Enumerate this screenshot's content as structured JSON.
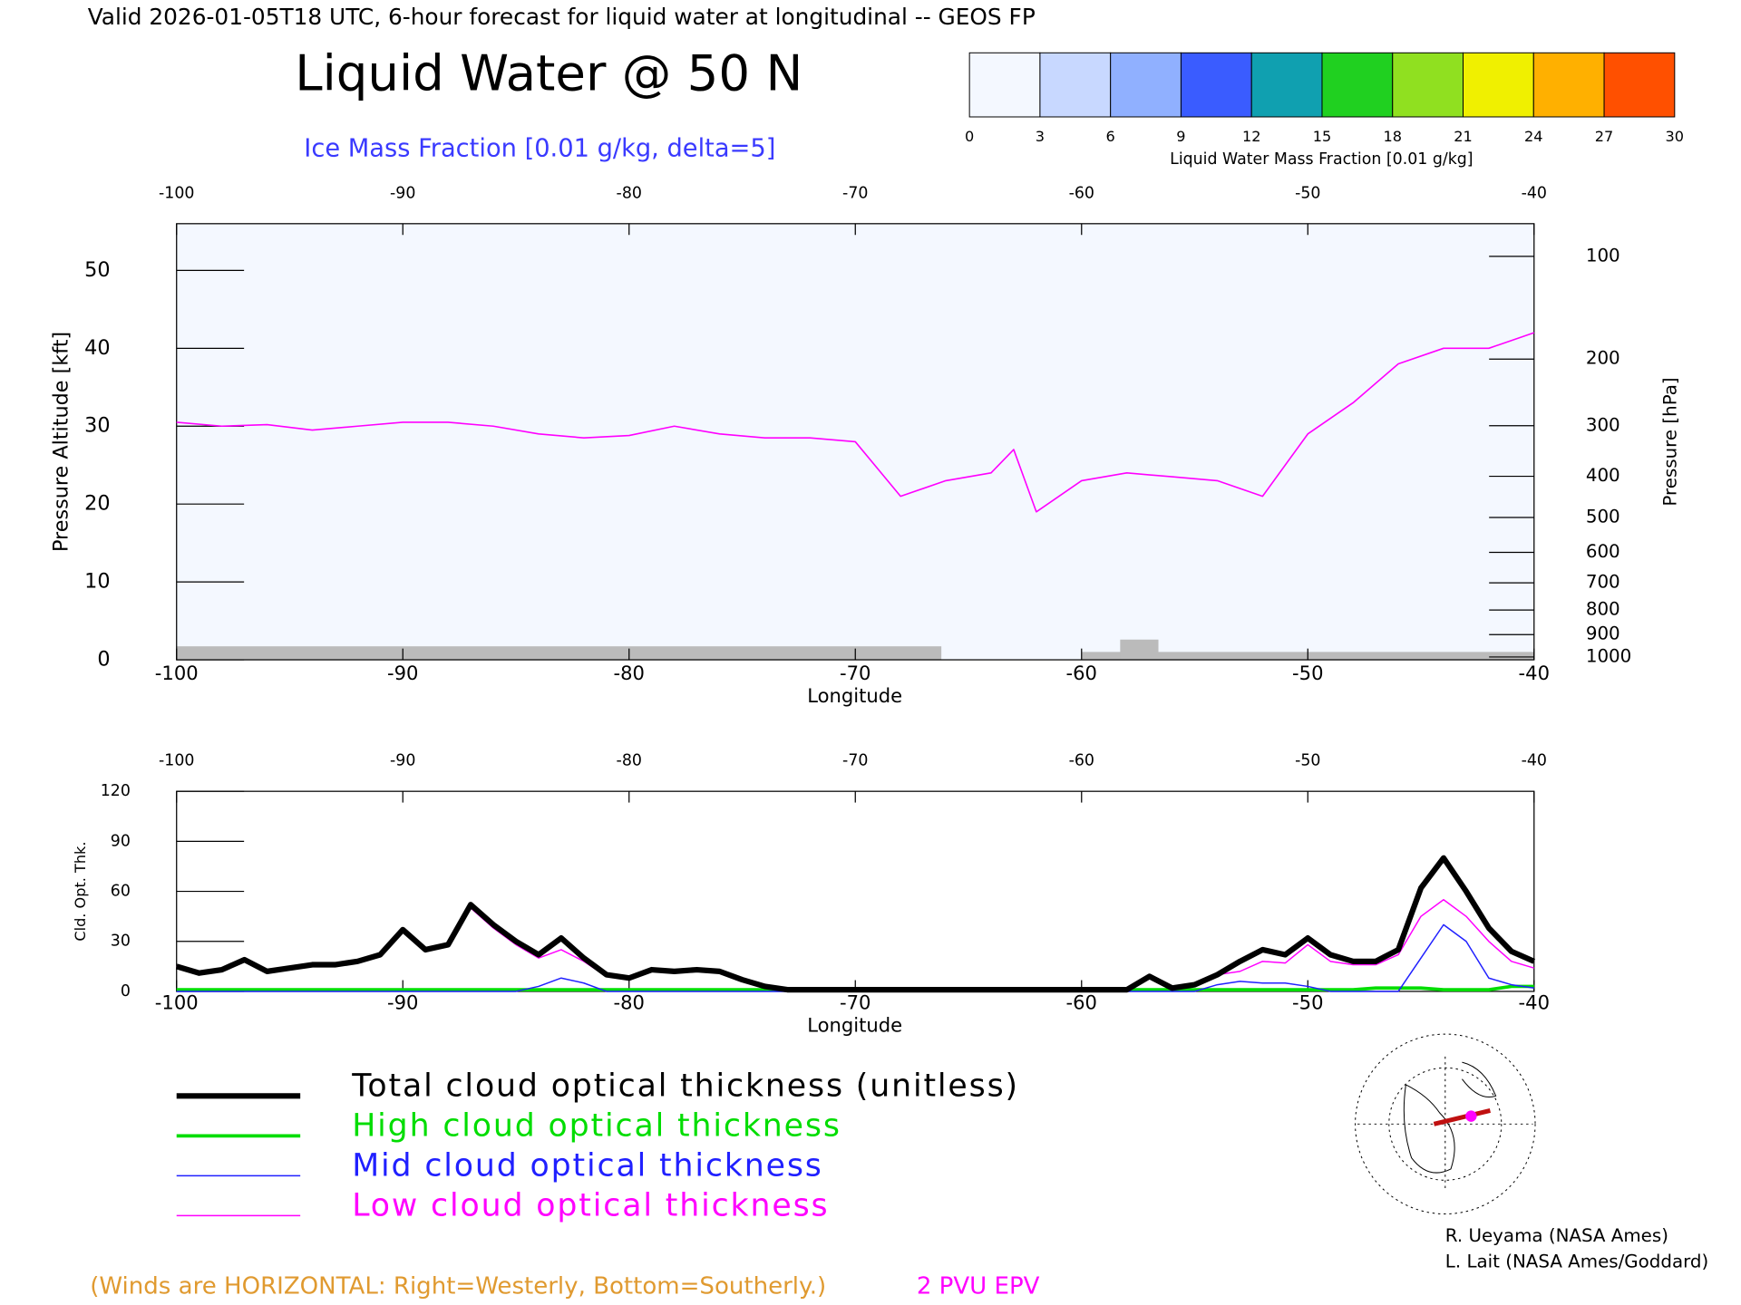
{
  "header": "Valid 2026-01-05T18 UTC, 6-hour forecast for liquid water at longitudinal -- GEOS FP",
  "colorbar": {
    "label": "Liquid Water Mass Fraction [0.01 g/kg]",
    "ticks": [
      0,
      3,
      6,
      9,
      12,
      15,
      18,
      21,
      24,
      27,
      30
    ],
    "colors": [
      "#f4f8ff",
      "#c8d8ff",
      "#90b0ff",
      "#3a5cff",
      "#10a0b0",
      "#20d020",
      "#90e020",
      "#f0f000",
      "#ffb000",
      "#ff5000"
    ]
  },
  "chart_data": [
    {
      "type": "cross-section",
      "title": "Liquid Water @ 50 N",
      "subtitle": "Ice Mass Fraction [0.01 g/kg, delta=5]",
      "xlabel": "Longitude",
      "ylabel": "Pressure Altitude [kft]",
      "y2label": "Pressure [hPa]",
      "xlim": [
        -100,
        -40
      ],
      "xticks": [
        -100,
        -90,
        -80,
        -70,
        -60,
        -50,
        -40
      ],
      "ylim": [
        0,
        56
      ],
      "yticks": [
        0,
        10,
        20,
        30,
        40,
        50
      ],
      "y2ticks": [
        100,
        200,
        300,
        400,
        500,
        600,
        700,
        800,
        900,
        1000
      ],
      "series": [
        {
          "name": "2 PVU EPV",
          "color": "#ff00ff",
          "x": [
            -100,
            -98,
            -96,
            -94,
            -92,
            -90,
            -88,
            -86,
            -84,
            -82,
            -80,
            -78,
            -76,
            -74,
            -72,
            -70,
            -68,
            -66,
            -64,
            -63,
            -62,
            -60,
            -58,
            -56,
            -54,
            -52,
            -50,
            -48,
            -46,
            -44,
            -42,
            -40
          ],
          "values": [
            30.5,
            30,
            30.2,
            29.5,
            30,
            30.5,
            30.5,
            30,
            29,
            28.5,
            28.8,
            30,
            29,
            28.5,
            28.5,
            28,
            21,
            23,
            24,
            27,
            19,
            23,
            24,
            23.5,
            23,
            21,
            29,
            33,
            38,
            40,
            40,
            42
          ]
        }
      ]
    },
    {
      "type": "line",
      "xlabel": "Longitude",
      "ylabel": "Cld. Opt. Thk.",
      "xlim": [
        -100,
        -40
      ],
      "xticks": [
        -100,
        -90,
        -80,
        -70,
        -60,
        -50,
        -40
      ],
      "ylim": [
        0,
        120
      ],
      "yticks": [
        0,
        30,
        60,
        90,
        120
      ],
      "x": [
        -100,
        -99,
        -98,
        -97,
        -96,
        -95,
        -94,
        -93,
        -92,
        -91,
        -90,
        -89,
        -88,
        -87,
        -86,
        -85,
        -84,
        -83,
        -82,
        -81,
        -80,
        -79,
        -78,
        -77,
        -76,
        -75,
        -74,
        -73,
        -72,
        -71,
        -70,
        -69,
        -68,
        -67,
        -66,
        -65,
        -64,
        -63,
        -62,
        -61,
        -60,
        -59,
        -58,
        -57,
        -56,
        -55,
        -54,
        -53,
        -52,
        -51,
        -50,
        -49,
        -48,
        -47,
        -46,
        -45,
        -44,
        -43,
        -42,
        -41,
        -40
      ],
      "series": [
        {
          "name": "Total cloud optical thickness (unitless)",
          "color": "#000000",
          "values": [
            15,
            11,
            13,
            19,
            12,
            14,
            16,
            16,
            18,
            22,
            37,
            25,
            28,
            52,
            40,
            30,
            22,
            32,
            20,
            10,
            8,
            13,
            12,
            13,
            12,
            7,
            3,
            1,
            1,
            1,
            1,
            1,
            1,
            1,
            1,
            1,
            1,
            1,
            1,
            1,
            1,
            1,
            1,
            9,
            2,
            4,
            10,
            18,
            25,
            22,
            32,
            22,
            18,
            18,
            25,
            62,
            80,
            60,
            38,
            24,
            18
          ]
        },
        {
          "name": "High cloud optical thickness",
          "color": "#00dd00",
          "values": [
            1,
            1,
            1,
            1,
            1,
            1,
            1,
            1,
            1,
            1,
            1,
            1,
            1,
            1,
            1,
            1,
            1,
            1,
            1,
            1,
            1,
            1,
            1,
            1,
            1,
            1,
            1,
            1,
            1,
            1,
            1,
            1,
            1,
            1,
            1,
            1,
            1,
            1,
            1,
            1,
            1,
            1,
            1,
            1,
            1,
            1,
            1,
            1,
            1,
            1,
            1,
            1,
            1,
            2,
            2,
            2,
            1,
            1,
            1,
            3,
            3
          ]
        },
        {
          "name": "Mid cloud optical thickness",
          "color": "#2020ff",
          "values": [
            0,
            0,
            0,
            0,
            0,
            0,
            0,
            0,
            0,
            0,
            0,
            0,
            0,
            0,
            0,
            0,
            3,
            8,
            5,
            0,
            0,
            0,
            0,
            0,
            0,
            0,
            0,
            0,
            0,
            0,
            0,
            0,
            0,
            0,
            0,
            0,
            0,
            0,
            0,
            0,
            0,
            0,
            0,
            0,
            0,
            0,
            4,
            6,
            5,
            5,
            3,
            0,
            0,
            0,
            0,
            20,
            40,
            30,
            8,
            4,
            2
          ]
        },
        {
          "name": "Low cloud optical thickness",
          "color": "#ff00ff",
          "values": [
            15,
            11,
            13,
            19,
            12,
            14,
            16,
            16,
            18,
            22,
            37,
            24,
            27,
            50,
            38,
            28,
            20,
            25,
            18,
            9,
            7,
            13,
            12,
            13,
            12,
            7,
            3,
            1,
            1,
            1,
            1,
            1,
            1,
            1,
            1,
            1,
            1,
            1,
            1,
            1,
            1,
            1,
            1,
            9,
            2,
            4,
            10,
            12,
            18,
            17,
            28,
            18,
            16,
            16,
            22,
            45,
            55,
            45,
            30,
            18,
            14
          ]
        }
      ]
    }
  ],
  "footnote": "(Winds are HORIZONTAL: Right=Westerly, Bottom=Southerly.)",
  "credits": [
    "R. Ueyama (NASA Ames)",
    "L. Lait (NASA Ames/Goddard)"
  ]
}
